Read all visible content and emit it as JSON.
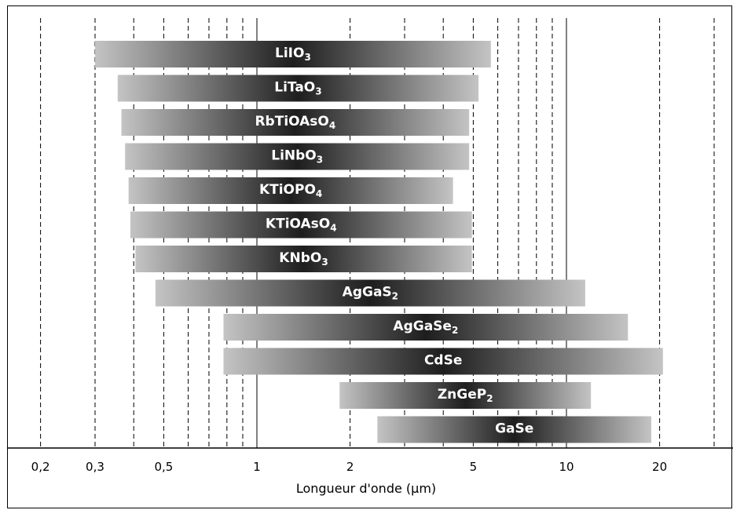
{
  "chart_data": {
    "type": "bar",
    "orientation": "horizontal-range",
    "x_scale": "log",
    "xlim": [
      0.17,
      33
    ],
    "xlabel": "Longueur d'onde (µm)",
    "x_major_ticks": [
      0.2,
      0.3,
      0.5,
      1,
      2,
      5,
      10,
      20
    ],
    "x_tick_labels": [
      "0,2",
      "0,3",
      "0,5",
      "1",
      "2",
      "5",
      "10",
      "20"
    ],
    "solid_gridlines": [
      1,
      10
    ],
    "dashed_gridlines": [
      0.2,
      0.3,
      0.4,
      0.5,
      0.6,
      0.7,
      0.8,
      0.9,
      2,
      3,
      4,
      5,
      6,
      7,
      8,
      9,
      20,
      30
    ],
    "bars": [
      {
        "name": "LiIO",
        "sub": "3",
        "start": 0.3,
        "end": 5.7
      },
      {
        "name": "LiTaO",
        "sub": "3",
        "start": 0.355,
        "end": 5.2
      },
      {
        "name": "RbTiOAsO",
        "sub": "4",
        "start": 0.365,
        "end": 4.85
      },
      {
        "name": "LiNbO",
        "sub": "3",
        "start": 0.375,
        "end": 4.85
      },
      {
        "name": "KTiOPO",
        "sub": "4",
        "start": 0.385,
        "end": 4.3
      },
      {
        "name": "KTiOAsO",
        "sub": "4",
        "start": 0.39,
        "end": 4.95
      },
      {
        "name": "KNbO",
        "sub": "3",
        "start": 0.405,
        "end": 4.95
      },
      {
        "name": "AgGaS",
        "sub": "2",
        "start": 0.47,
        "end": 11.5
      },
      {
        "name": "AgGaSe",
        "sub": "2",
        "start": 0.78,
        "end": 15.8
      },
      {
        "name": "CdSe",
        "sub": "",
        "start": 0.78,
        "end": 20.5
      },
      {
        "name": "ZnGeP",
        "sub": "2",
        "start": 1.85,
        "end": 12.0
      },
      {
        "name": "GaSe",
        "sub": "",
        "start": 2.45,
        "end": 18.8
      }
    ],
    "colors": {
      "bar_edge": "#c4c4c4",
      "bar_center": "#1e1e1e",
      "grid": "#000000"
    }
  }
}
